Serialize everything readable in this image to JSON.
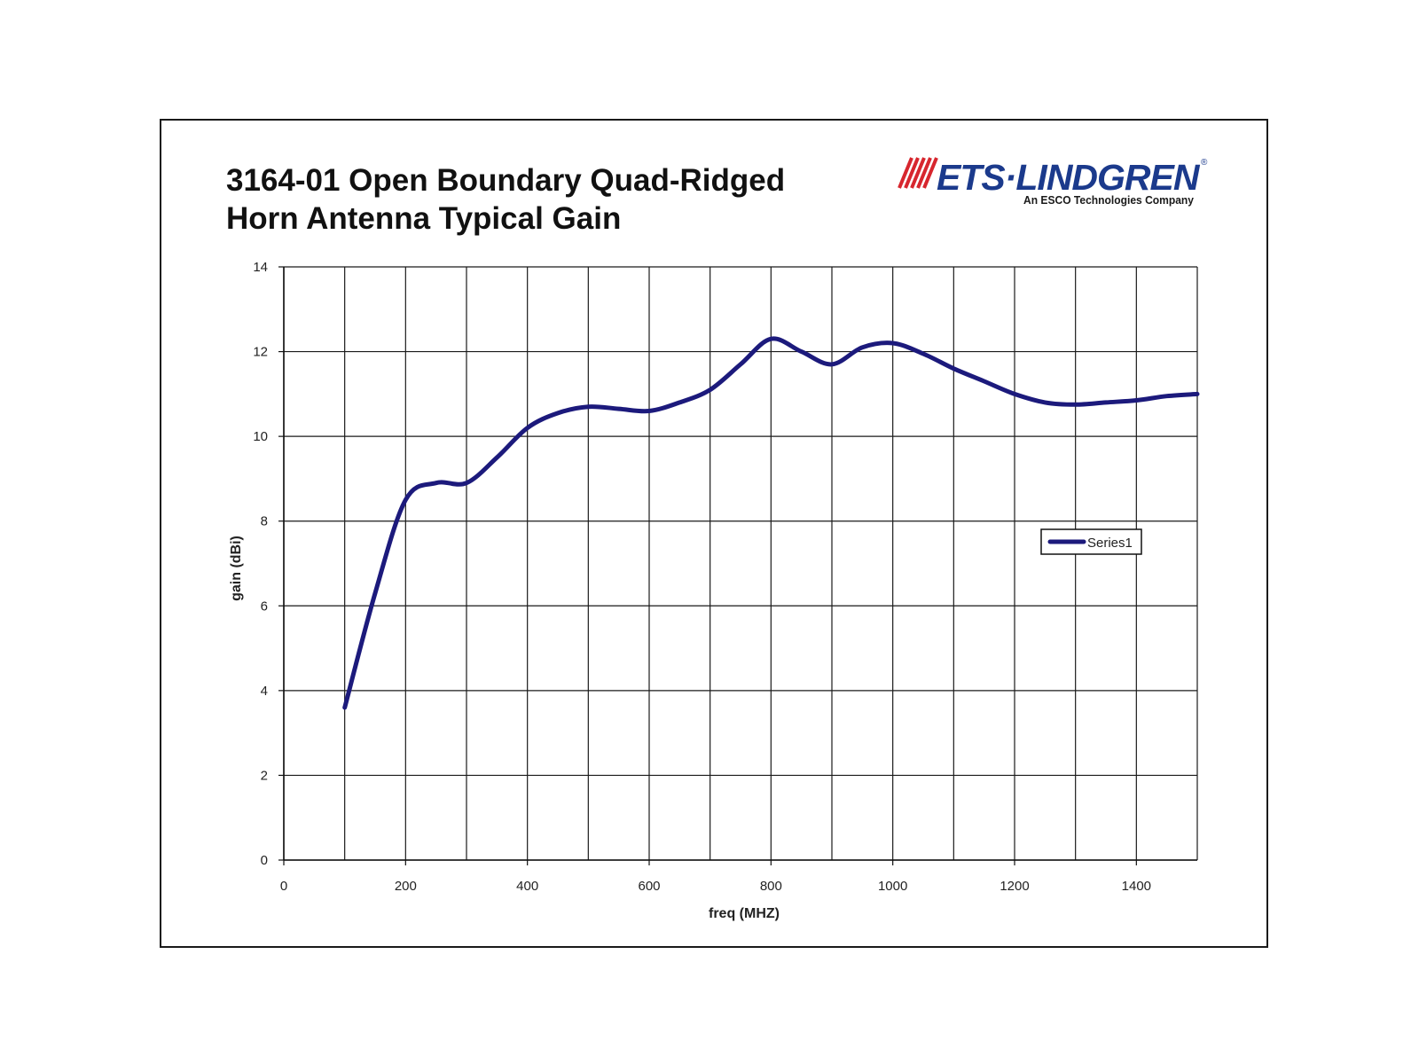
{
  "title_lines": [
    "3164-01 Open Boundary Quad-Ridged",
    "Horn Antenna Typical Gain"
  ],
  "logo": {
    "brand": "ETS·LINDGREN",
    "registered_mark": "®",
    "tagline": "An ESCO Technologies Company",
    "brand_color": "#1b3a8c",
    "accent_color": "#d7262e"
  },
  "chart_data": {
    "type": "line",
    "title": "3164-01 Open Boundary Quad-Ridged Horn Antenna Typical Gain",
    "xlabel": "freq (MHZ)",
    "ylabel": "gain (dBi)",
    "xlim": [
      0,
      1500
    ],
    "ylim": [
      0,
      14
    ],
    "xticks": [
      0,
      200,
      400,
      600,
      800,
      1000,
      1200,
      1400
    ],
    "yticks": [
      0,
      2,
      4,
      6,
      8,
      10,
      12,
      14
    ],
    "grid": true,
    "legend_position": "right-middle",
    "series": [
      {
        "name": "Series1",
        "color": "#1c1a7c",
        "x": [
          100,
          150,
          200,
          250,
          300,
          350,
          400,
          450,
          500,
          550,
          600,
          650,
          700,
          750,
          800,
          850,
          900,
          950,
          1000,
          1050,
          1100,
          1150,
          1200,
          1250,
          1300,
          1350,
          1400,
          1450,
          1500
        ],
        "y": [
          3.6,
          6.3,
          8.5,
          8.9,
          8.9,
          9.5,
          10.2,
          10.55,
          10.7,
          10.65,
          10.6,
          10.8,
          11.1,
          11.7,
          12.3,
          12.0,
          11.7,
          12.1,
          12.2,
          11.95,
          11.6,
          11.3,
          11.0,
          10.8,
          10.75,
          10.8,
          10.85,
          10.95,
          11.0
        ]
      }
    ]
  }
}
